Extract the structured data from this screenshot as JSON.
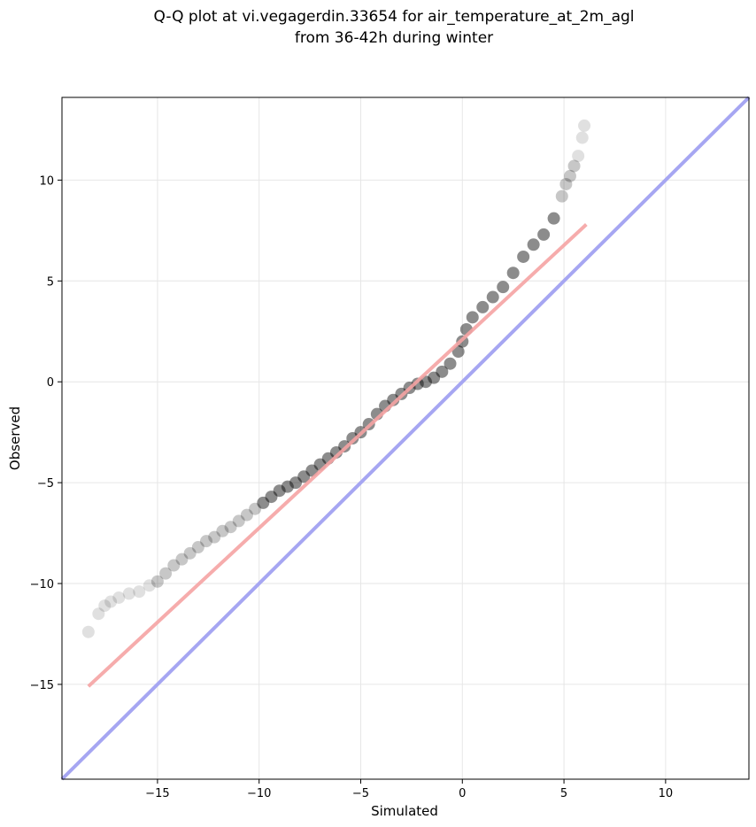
{
  "chart_data": {
    "type": "scatter",
    "title": [
      "Q-Q plot at vi.vegagerdin.33654 for air_temperature_at_2m_agl",
      "from 36-42h during winter"
    ],
    "xlabel": "Simulated",
    "ylabel": "Observed",
    "xlim": [
      -19.7,
      14.1
    ],
    "ylim": [
      -19.7,
      14.1
    ],
    "xticks": [
      -15,
      -10,
      -5,
      0,
      5,
      10
    ],
    "yticks": [
      -15,
      -10,
      -5,
      0,
      5,
      10
    ],
    "xtick_labels": [
      "−15",
      "−10",
      "−5",
      "0",
      "5",
      "10"
    ],
    "ytick_labels": [
      "−15",
      "−10",
      "−5",
      "0",
      "5",
      "10"
    ],
    "grid": true,
    "colors": {
      "points": "#000000",
      "fit_line": "#f5a3a3",
      "identity_line": "#a6a6f2",
      "grid": "#e6e6e6"
    },
    "quantiles": {
      "x": [
        -18.4,
        -17.9,
        -17.6,
        -17.3,
        -16.9,
        -16.4,
        -15.9,
        -15.4,
        -15,
        -14.6,
        -14.2,
        -13.8,
        -13.4,
        -13,
        -12.6,
        -12.2,
        -11.8,
        -11.4,
        -11,
        -10.6,
        -10.2,
        -9.8,
        -9.4,
        -9,
        -8.6,
        -8.2,
        -7.8,
        -7.4,
        -7,
        -6.6,
        -6.2,
        -5.8,
        -5.4,
        -5,
        -4.6,
        -4.2,
        -3.8,
        -3.4,
        -3,
        -2.6,
        -2.2,
        -1.8,
        -1.4,
        -1,
        -0.6,
        -0.2,
        0,
        0.2,
        0.5,
        1,
        1.5,
        2,
        2.5,
        3,
        3.5,
        4,
        4.5,
        4.9,
        5.1,
        5.3,
        5.5,
        5.7,
        5.9,
        6
      ],
      "y": [
        -12.4,
        -11.5,
        -11.1,
        -10.9,
        -10.7,
        -10.5,
        -10.4,
        -10.1,
        -9.9,
        -9.5,
        -9.1,
        -8.8,
        -8.5,
        -8.2,
        -7.9,
        -7.7,
        -7.4,
        -7.2,
        -6.9,
        -6.6,
        -6.3,
        -6,
        -5.7,
        -5.4,
        -5.2,
        -5,
        -4.7,
        -4.4,
        -4.1,
        -3.8,
        -3.5,
        -3.2,
        -2.8,
        -2.5,
        -2.1,
        -1.6,
        -1.2,
        -0.9,
        -0.6,
        -0.3,
        -0.1,
        0,
        0.2,
        0.5,
        0.9,
        1.5,
        2,
        2.6,
        3.2,
        3.7,
        4.2,
        4.7,
        5.4,
        6.2,
        6.8,
        7.3,
        8.1,
        9.2,
        9.8,
        10.2,
        10.7,
        11.2,
        12.1,
        12.7
      ]
    },
    "fit_line": {
      "x": [
        -18.4,
        6.1
      ],
      "y": [
        -15.1,
        7.8
      ]
    },
    "identity_line": {
      "x": [
        -19.7,
        14.1
      ],
      "y": [
        -19.7,
        14.1
      ]
    }
  }
}
